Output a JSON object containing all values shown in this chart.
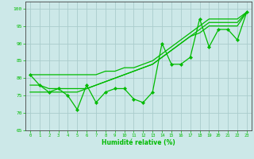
{
  "x": [
    0,
    1,
    2,
    3,
    4,
    5,
    6,
    7,
    8,
    9,
    10,
    11,
    12,
    13,
    14,
    15,
    16,
    17,
    18,
    19,
    20,
    21,
    22,
    23
  ],
  "y_main": [
    81,
    78,
    76,
    77,
    75,
    71,
    78,
    73,
    76,
    77,
    77,
    74,
    73,
    76,
    90,
    84,
    84,
    86,
    97,
    89,
    94,
    94,
    91,
    99
  ],
  "y_line1": [
    81,
    81,
    81,
    81,
    81,
    81,
    81,
    81,
    82,
    82,
    83,
    83,
    84,
    85,
    87,
    89,
    91,
    93,
    95,
    97,
    97,
    97,
    97,
    99
  ],
  "y_line2": [
    78,
    78,
    77,
    77,
    77,
    77,
    77,
    78,
    79,
    80,
    81,
    82,
    83,
    84,
    86,
    88,
    90,
    92,
    94,
    96,
    96,
    96,
    96,
    99
  ],
  "y_line3": [
    76,
    76,
    76,
    76,
    76,
    76,
    77,
    78,
    79,
    80,
    81,
    82,
    83,
    84,
    86,
    88,
    90,
    92,
    93,
    95,
    95,
    95,
    95,
    99
  ],
  "line_color": "#00bb00",
  "bg_color": "#cce8e8",
  "grid_color": "#aacccc",
  "xlabel": "Humidité relative (%)",
  "ylim": [
    65,
    102
  ],
  "xlim": [
    -0.5,
    23.5
  ],
  "yticks": [
    65,
    70,
    75,
    80,
    85,
    90,
    95,
    100
  ],
  "xticks": [
    0,
    1,
    2,
    3,
    4,
    5,
    6,
    7,
    8,
    9,
    10,
    11,
    12,
    13,
    14,
    15,
    16,
    17,
    18,
    19,
    20,
    21,
    22,
    23
  ]
}
